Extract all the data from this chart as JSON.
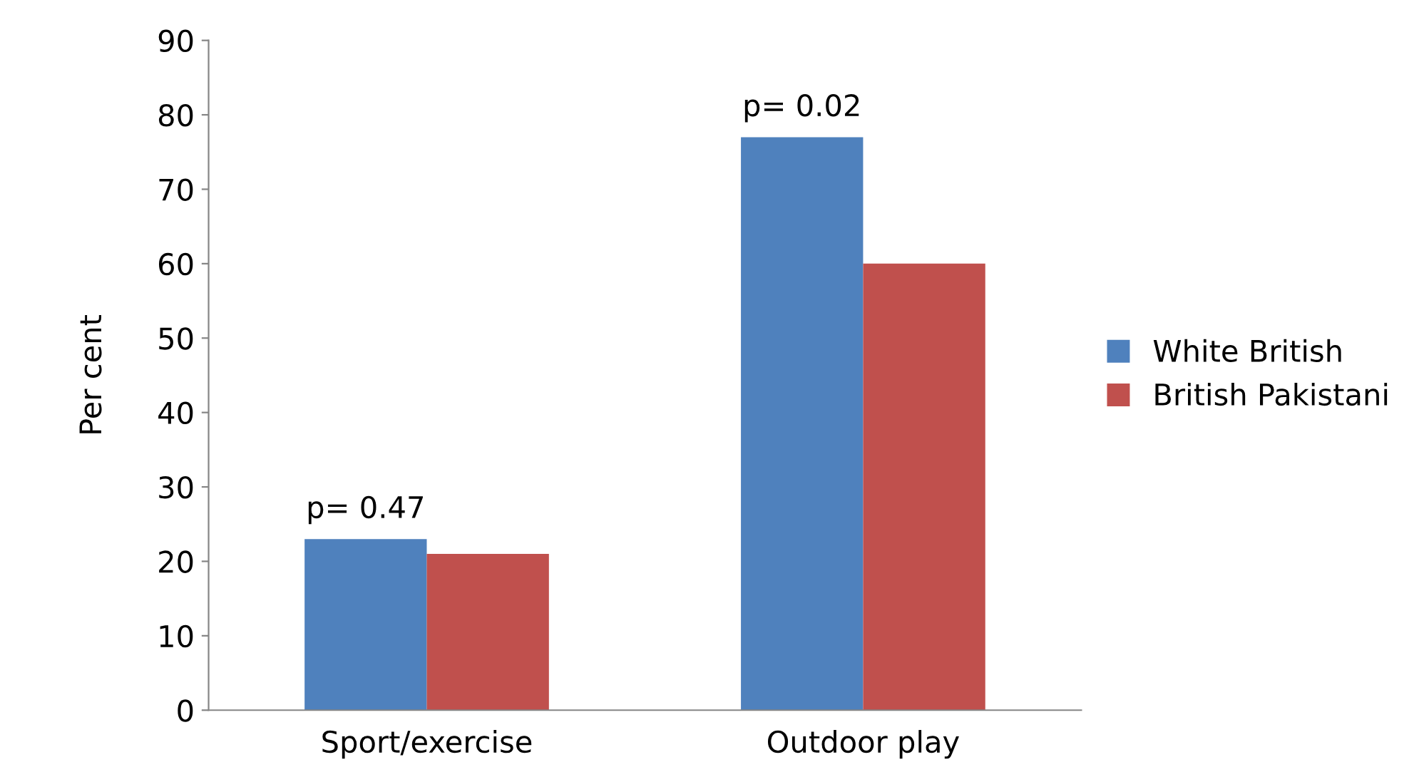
{
  "chart_data": {
    "type": "bar",
    "ylabel": "Per cent",
    "categories": [
      "Sport/exercise",
      "Outdoor play"
    ],
    "series": [
      {
        "name": "White British",
        "color": "#4f81bd",
        "values": [
          23,
          77
        ]
      },
      {
        "name": "British Pakistani",
        "color": "#c0504d",
        "values": [
          21,
          60
        ]
      }
    ],
    "ylim": [
      0,
      90
    ],
    "yticks": [
      0,
      10,
      20,
      30,
      40,
      50,
      60,
      70,
      80,
      90
    ],
    "grid": false,
    "legend": "right",
    "annotations": [
      "p= 0.47",
      "p= 0.02"
    ]
  }
}
